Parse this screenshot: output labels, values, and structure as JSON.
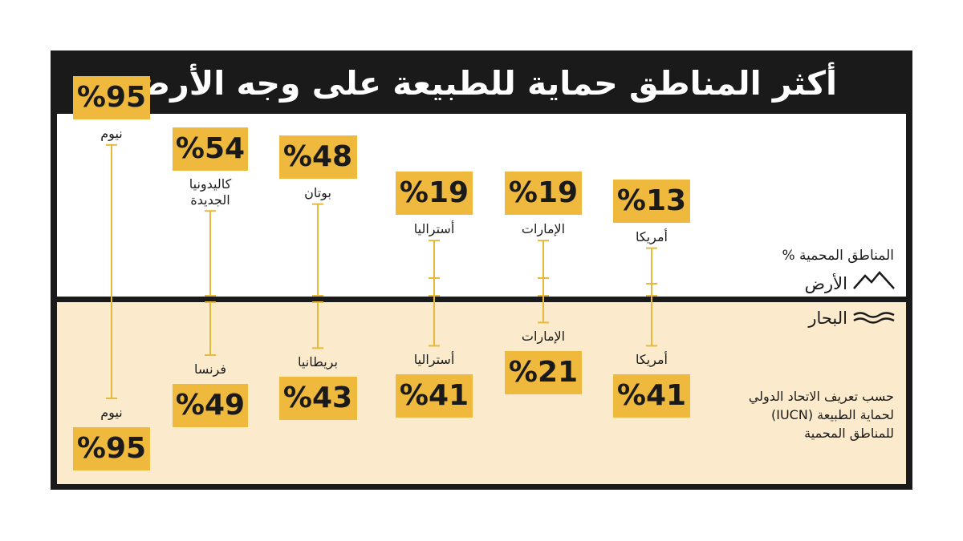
{
  "title": "أكثر المناطق حماية للطبيعة على وجه الأرض",
  "legend": {
    "percent_label": "المناطق المحمية %",
    "land_label": "الأرض",
    "sea_label": "البحار",
    "land_icon": "mountain-icon",
    "sea_icon": "waves-icon",
    "note_line1": "حسب تعريف الاتحاد الدولي",
    "note_line2": "لحماية الطبيعة (IUCN)",
    "note_line3": "للمناطق المحمية"
  },
  "colors": {
    "accent": "#eeb93d",
    "sea_bg": "#fbeacb",
    "frame": "#1a1a1a",
    "connector": "#e6b93a"
  },
  "chart_data": {
    "type": "bar",
    "title": "أكثر المناطق حماية للطبيعة على وجه الأرض",
    "series": [
      {
        "name": "الأرض",
        "categories": [
          "نيوم",
          "كاليدونيا الجديدة",
          "بوتان",
          "أستراليا",
          "الإمارات",
          "أمريكا"
        ],
        "values": [
          95,
          54,
          48,
          19,
          19,
          13
        ],
        "labels": [
          "%95",
          "%54",
          "%48",
          "%19",
          "%19",
          "%13"
        ]
      },
      {
        "name": "البحار",
        "categories": [
          "نيوم",
          "فرنسا",
          "بريطانيا",
          "أستراليا",
          "الإمارات",
          "أمريكا"
        ],
        "values": [
          95,
          49,
          43,
          41,
          21,
          41
        ],
        "labels": [
          "%95",
          "%49",
          "%43",
          "%41",
          "%21",
          "%41"
        ]
      }
    ]
  }
}
